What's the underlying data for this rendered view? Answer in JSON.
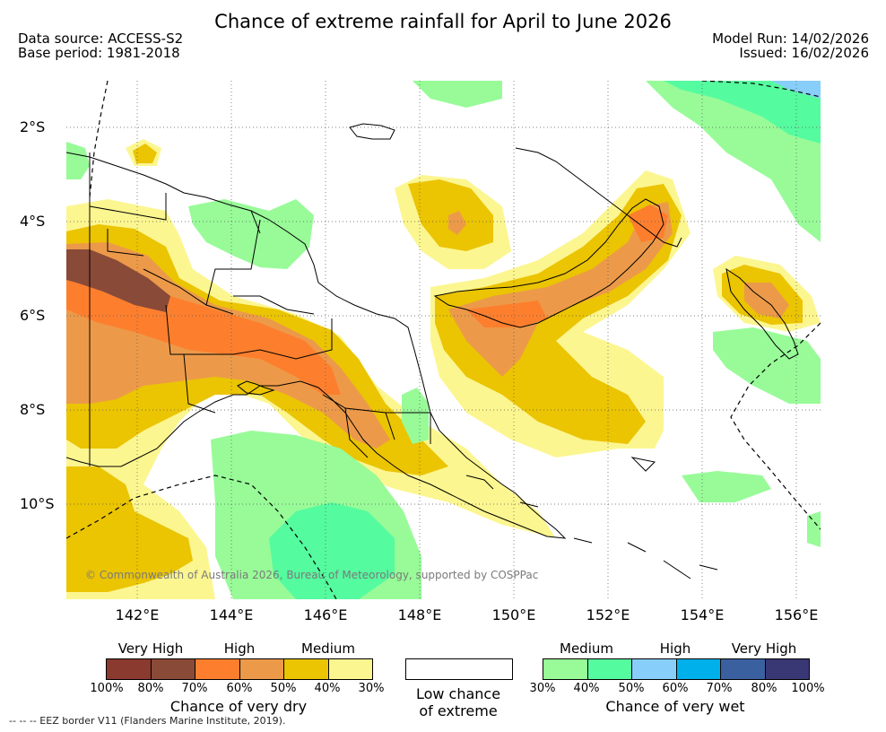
{
  "title": "Chance of extreme rainfall for April to June 2026",
  "meta": {
    "data_source": "Data source: ACCESS-S2",
    "base_period": "Base period: 1981-2018",
    "model_run": "Model Run: 14/02/2026",
    "issued": "Issued: 16/02/2026"
  },
  "axes": {
    "lat_labels": [
      "2°S",
      "4°S",
      "6°S",
      "8°S",
      "10°S"
    ],
    "lon_labels": [
      "142°E",
      "144°E",
      "146°E",
      "148°E",
      "150°E",
      "152°E",
      "154°E",
      "156°E"
    ]
  },
  "colors": {
    "dry_very_high_1": "#8b3a2f",
    "dry_very_high_2": "#8a4a38",
    "dry_high_1": "#fd7f2e",
    "dry_high_2": "#ec9a4a",
    "dry_medium_1": "#ebc402",
    "dry_medium_2": "#fcf690",
    "wet_medium_1": "#98fb98",
    "wet_medium_2": "#55fb9f",
    "wet_high_1": "#87cefa",
    "wet_high_2": "#00b0ea",
    "wet_very_high_1": "#3a60a0",
    "wet_very_high_2": "#3a3874"
  },
  "copyright": "© Commonwealth of Australia 2026, Bureau of Meteorology, supported by COSPPac",
  "legend": {
    "dry": {
      "categories": [
        "Very High",
        "High",
        "Medium"
      ],
      "percents": [
        "100%",
        "80%",
        "70%",
        "60%",
        "50%",
        "40%",
        "30%"
      ],
      "title": "Chance of very dry"
    },
    "low": {
      "line1": "Low chance",
      "line2": "of extreme"
    },
    "wet": {
      "categories": [
        "Medium",
        "High",
        "Very High"
      ],
      "percents": [
        "30%",
        "40%",
        "50%",
        "60%",
        "70%",
        "80%",
        "100%"
      ],
      "title": "Chance of very wet"
    }
  },
  "eez_note": "--  --  -- EEZ border V11 (Flanders Marine Institute, 2019)."
}
